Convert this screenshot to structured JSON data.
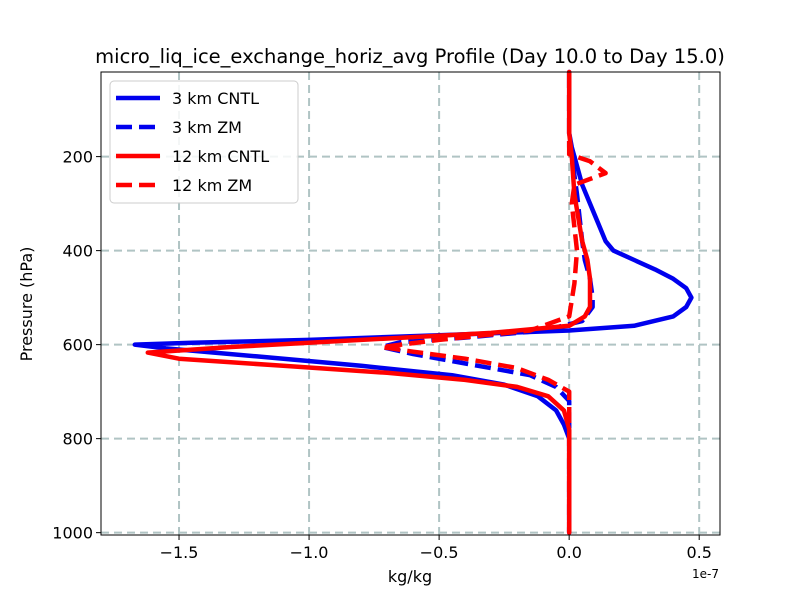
{
  "chart_data": {
    "type": "line",
    "title": "micro_liq_ice_exchange_horiz_avg Profile (Day 10.0 to Day 15.0)",
    "xlabel": "kg/kg",
    "ylabel": "Pressure (hPa)",
    "x_offset_label": "1e-7",
    "xlim": [
      -1.8,
      0.58
    ],
    "ylim": [
      1005,
      20
    ],
    "y_inverted": true,
    "grid": true,
    "legend_position": "upper-left",
    "x_ticks": [
      -1.5,
      -1.0,
      -0.5,
      0.0,
      0.5
    ],
    "x_tick_labels": [
      "−1.5",
      "−1.0",
      "−0.5",
      "0.0",
      "0.5"
    ],
    "y_ticks": [
      200,
      400,
      600,
      800,
      1000
    ],
    "y_tick_labels": [
      "200",
      "400",
      "600",
      "800",
      "1000"
    ],
    "series": [
      {
        "name": "3 km CNTL",
        "color": "#0000ee",
        "dash": "solid",
        "x": [
          0.0,
          0.0,
          0.0,
          0.01,
          0.03,
          0.05,
          0.08,
          0.11,
          0.14,
          0.17,
          0.25,
          0.33,
          0.4,
          0.45,
          0.47,
          0.45,
          0.4,
          0.25,
          0.0,
          -0.5,
          -1.0,
          -1.45,
          -1.67,
          -1.55,
          -1.2,
          -0.8,
          -0.45,
          -0.25,
          -0.12,
          -0.05,
          -0.02,
          0.0,
          0.0,
          0.0,
          0.0
        ],
        "p": [
          20,
          100,
          150,
          180,
          220,
          260,
          300,
          340,
          380,
          400,
          420,
          440,
          460,
          480,
          500,
          520,
          540,
          560,
          570,
          580,
          590,
          596,
          600,
          608,
          625,
          645,
          665,
          685,
          710,
          740,
          770,
          800,
          850,
          900,
          1000
        ]
      },
      {
        "name": "3 km ZM",
        "color": "#0000ee",
        "dash": "dashed",
        "x": [
          0.0,
          0.0,
          0.0,
          0.01,
          0.02,
          0.03,
          0.04,
          0.05,
          0.06,
          0.08,
          0.09,
          0.09,
          0.05,
          -0.1,
          -0.4,
          -0.65,
          -0.72,
          -0.6,
          -0.35,
          -0.15,
          -0.05,
          0.0,
          0.0,
          0.0
        ],
        "p": [
          20,
          100,
          180,
          200,
          240,
          280,
          330,
          380,
          420,
          460,
          500,
          520,
          550,
          570,
          585,
          595,
          605,
          620,
          645,
          665,
          690,
          720,
          800,
          1000
        ]
      },
      {
        "name": "12 km CNTL",
        "color": "#ff0000",
        "dash": "solid",
        "x": [
          0.0,
          0.0,
          0.0,
          0.01,
          0.02,
          0.05,
          0.07,
          0.08,
          0.08,
          0.08,
          0.06,
          0.0,
          -0.3,
          -0.8,
          -1.3,
          -1.62,
          -1.5,
          -1.1,
          -0.7,
          -0.4,
          -0.2,
          -0.08,
          -0.02,
          0.0,
          0.0,
          0.0
        ],
        "p": [
          20,
          100,
          150,
          200,
          280,
          380,
          420,
          460,
          500,
          520,
          540,
          560,
          575,
          590,
          605,
          617,
          630,
          645,
          660,
          675,
          690,
          710,
          740,
          780,
          850,
          1000
        ]
      },
      {
        "name": "12 km ZM",
        "color": "#ff0000",
        "dash": "dashed",
        "x": [
          0.0,
          0.0,
          0.0,
          0.08,
          0.14,
          0.02,
          0.01,
          0.02,
          0.03,
          0.02,
          0.0,
          -0.15,
          -0.5,
          -0.72,
          -0.6,
          -0.4,
          -0.2,
          -0.08,
          0.0,
          0.0,
          0.0
        ],
        "p": [
          20,
          100,
          195,
          210,
          235,
          260,
          300,
          350,
          400,
          470,
          540,
          570,
          590,
          605,
          615,
          630,
          650,
          675,
          700,
          740,
          1000
        ]
      }
    ]
  }
}
